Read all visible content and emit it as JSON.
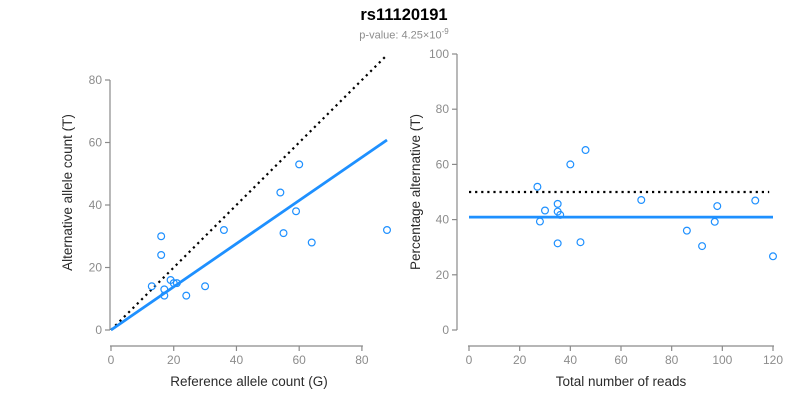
{
  "header": {
    "title": "rs11120191",
    "subtitle_prefix": "p-value: 4.25×10",
    "subtitle_exponent": "-9"
  },
  "colors": {
    "accent_blue": "#1E90FF",
    "identity_black": "#000000",
    "axis_gray": "#8a8a8a",
    "tick_label_gray": "#8c8c8c",
    "axis_title_dark": "#2b2b2b",
    "subtitle_gray": "#8c8c8c"
  },
  "chart_data": [
    {
      "type": "scatter",
      "panel": "allele-counts",
      "xlabel": "Reference allele count (G)",
      "ylabel": "Alternative allele count (T)",
      "xlim": [
        0,
        88
      ],
      "ylim": [
        0,
        88
      ],
      "xticks": [
        0,
        20,
        40,
        60,
        80
      ],
      "yticks": [
        0,
        20,
        40,
        60,
        80
      ],
      "grid": false,
      "points": [
        [
          13,
          14
        ],
        [
          16,
          24
        ],
        [
          16,
          30
        ],
        [
          17,
          11
        ],
        [
          17,
          13
        ],
        [
          19,
          16
        ],
        [
          20,
          15
        ],
        [
          21,
          15
        ],
        [
          24,
          11
        ],
        [
          30,
          14
        ],
        [
          36,
          32
        ],
        [
          54,
          44
        ],
        [
          55,
          31
        ],
        [
          59,
          38
        ],
        [
          60,
          53
        ],
        [
          64,
          28
        ],
        [
          88,
          32
        ]
      ],
      "lines": [
        {
          "name": "identity-line",
          "style": "dotted",
          "color": "#000000",
          "x1": 0,
          "y1": 0,
          "x2": 88,
          "y2": 88
        },
        {
          "name": "fit-line",
          "style": "solid",
          "color": "#1E90FF",
          "x1": 0,
          "y1": 0,
          "x2": 88,
          "y2": 60.8
        }
      ]
    },
    {
      "type": "scatter",
      "panel": "percentage-vs-reads",
      "xlabel": "Total number of reads",
      "ylabel": "Percentage alternative (T)",
      "xlim": [
        0,
        120
      ],
      "ylim": [
        0,
        100
      ],
      "xticks": [
        0,
        20,
        40,
        60,
        80,
        100,
        120
      ],
      "yticks": [
        0,
        20,
        40,
        60,
        80,
        100
      ],
      "grid": false,
      "points": [
        [
          27,
          51.9
        ],
        [
          28,
          39.3
        ],
        [
          30,
          43.3
        ],
        [
          35,
          45.7
        ],
        [
          35,
          42.9
        ],
        [
          35,
          31.4
        ],
        [
          36,
          41.7
        ],
        [
          40,
          60
        ],
        [
          44,
          31.8
        ],
        [
          46,
          65.2
        ],
        [
          68,
          47.1
        ],
        [
          86,
          36
        ],
        [
          92,
          30.4
        ],
        [
          97,
          39.2
        ],
        [
          98,
          44.9
        ],
        [
          113,
          46.9
        ],
        [
          120,
          26.7
        ]
      ],
      "lines": [
        {
          "name": "expected-50pct-line",
          "style": "dotted",
          "color": "#000000",
          "x1": 0,
          "y1": 50,
          "x2": 118.5,
          "y2": 50
        },
        {
          "name": "observed-pct-line",
          "style": "solid",
          "color": "#1E90FF",
          "x1": 0,
          "y1": 40.9,
          "x2": 120,
          "y2": 40.9
        }
      ]
    }
  ]
}
